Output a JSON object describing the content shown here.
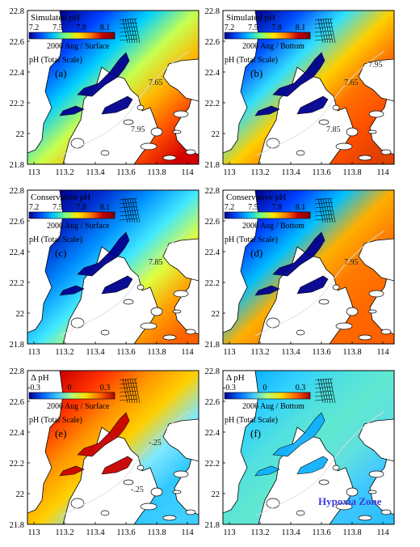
{
  "figure": {
    "x_ticks": [
      "113",
      "113.2",
      "113.4",
      "113.6",
      "113.8",
      "114"
    ],
    "y_ticks": [
      "21.8",
      "22",
      "22.2",
      "22.4",
      "22.6",
      "22.8"
    ],
    "ph_colorbar_ticks": [
      "7.2",
      "7.5",
      "7.8",
      "8.1"
    ],
    "dph_colorbar_ticks": [
      "-0.3",
      "0",
      "0.3"
    ],
    "scale_label": "pH (Total Scale)",
    "colors": {
      "land": "#ffffff",
      "ph_scale": [
        "#00008f",
        "#0050ff",
        "#00c8ff",
        "#7dff7a",
        "#ffe600",
        "#ff8000",
        "#c80000",
        "#800000"
      ],
      "dph_scale": [
        "#00008f",
        "#0064ff",
        "#3cc8ff",
        "#b4ff7a",
        "#ffdc00",
        "#ff6400",
        "#b40000"
      ]
    },
    "panels": [
      {
        "id": "a",
        "letter": "(a)",
        "variable": "Simulated pH",
        "period": "2006 Aug / Surface",
        "scale": "ph",
        "contours": [
          "7.65",
          "7.95"
        ]
      },
      {
        "id": "b",
        "letter": "(b)",
        "variable": "Simulated pH",
        "period": "2006 Aug / Bottom",
        "scale": "ph",
        "contours": [
          "7.65",
          "7.85",
          "7.95"
        ]
      },
      {
        "id": "c",
        "letter": "(c)",
        "variable": "Conservative pH",
        "period": "2006 Aug / Surface",
        "scale": "ph",
        "contours": [
          "7.85"
        ]
      },
      {
        "id": "d",
        "letter": "(d)",
        "variable": "Conservative pH",
        "period": "2006 Aug / Bottom",
        "scale": "ph",
        "contours": [
          "7.95"
        ]
      },
      {
        "id": "e",
        "letter": "(e)",
        "variable": "Δ pH",
        "period": "2006 Aug / Surface",
        "scale": "dph",
        "contours": [
          "-.25",
          "-.25"
        ]
      },
      {
        "id": "f",
        "letter": "(f)",
        "variable": "Δ pH",
        "period": "2006 Aug / Bottom",
        "scale": "dph",
        "contours": [],
        "annotation": "Hypoxia Zone"
      }
    ]
  }
}
